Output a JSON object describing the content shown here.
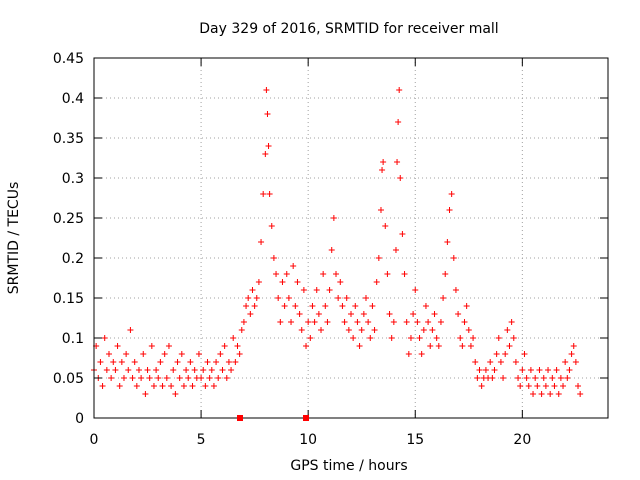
{
  "colors": {
    "background": "#ffffff",
    "axis": "#000000",
    "grid": "#a0a0a0",
    "series": "#ff0000"
  },
  "chart_data": {
    "type": "scatter",
    "title": "Day 329 of 2016, SRMTID for receiver mall",
    "xlabel": "GPS time / hours",
    "ylabel": "SRMTID / TECUs",
    "xlim": [
      0,
      24
    ],
    "ylim": [
      0,
      0.45
    ],
    "grid": true,
    "x_ticks": [
      0,
      5,
      10,
      15,
      20
    ],
    "x_tick_labels": [
      "0",
      "5",
      "10",
      "15",
      "20"
    ],
    "y_ticks": [
      0,
      0.05,
      0.1,
      0.15,
      0.2,
      0.25,
      0.3,
      0.35,
      0.4,
      0.45
    ],
    "y_tick_labels": [
      "0",
      "0.05",
      "0.1",
      "0.15",
      "0.2",
      "0.25",
      "0.3",
      "0.35",
      "0.4",
      "0.45"
    ],
    "marker": "plus",
    "series": [
      {
        "name": "SRMTID",
        "points": [
          [
            0.0,
            0.06
          ],
          [
            0.1,
            0.09
          ],
          [
            0.2,
            0.05
          ],
          [
            0.3,
            0.07
          ],
          [
            0.4,
            0.04
          ],
          [
            0.5,
            0.1
          ],
          [
            0.6,
            0.06
          ],
          [
            0.7,
            0.08
          ],
          [
            0.8,
            0.05
          ],
          [
            0.9,
            0.07
          ],
          [
            1.0,
            0.06
          ],
          [
            1.1,
            0.09
          ],
          [
            1.2,
            0.04
          ],
          [
            1.3,
            0.07
          ],
          [
            1.4,
            0.05
          ],
          [
            1.5,
            0.08
          ],
          [
            1.6,
            0.06
          ],
          [
            1.7,
            0.11
          ],
          [
            1.8,
            0.05
          ],
          [
            1.9,
            0.07
          ],
          [
            2.0,
            0.04
          ],
          [
            2.1,
            0.06
          ],
          [
            2.2,
            0.05
          ],
          [
            2.3,
            0.08
          ],
          [
            2.4,
            0.03
          ],
          [
            2.5,
            0.06
          ],
          [
            2.6,
            0.05
          ],
          [
            2.7,
            0.09
          ],
          [
            2.8,
            0.04
          ],
          [
            2.9,
            0.06
          ],
          [
            3.0,
            0.05
          ],
          [
            3.1,
            0.07
          ],
          [
            3.2,
            0.04
          ],
          [
            3.3,
            0.08
          ],
          [
            3.4,
            0.05
          ],
          [
            3.5,
            0.09
          ],
          [
            3.6,
            0.04
          ],
          [
            3.7,
            0.06
          ],
          [
            3.8,
            0.03
          ],
          [
            3.9,
            0.07
          ],
          [
            4.0,
            0.05
          ],
          [
            4.1,
            0.08
          ],
          [
            4.2,
            0.04
          ],
          [
            4.3,
            0.06
          ],
          [
            4.4,
            0.05
          ],
          [
            4.5,
            0.07
          ],
          [
            4.6,
            0.04
          ],
          [
            4.7,
            0.06
          ],
          [
            4.8,
            0.05
          ],
          [
            4.9,
            0.08
          ],
          [
            5.0,
            0.05
          ],
          [
            5.1,
            0.06
          ],
          [
            5.2,
            0.04
          ],
          [
            5.3,
            0.07
          ],
          [
            5.4,
            0.05
          ],
          [
            5.5,
            0.06
          ],
          [
            5.6,
            0.04
          ],
          [
            5.7,
            0.07
          ],
          [
            5.8,
            0.05
          ],
          [
            5.9,
            0.08
          ],
          [
            6.0,
            0.06
          ],
          [
            6.1,
            0.09
          ],
          [
            6.2,
            0.05
          ],
          [
            6.3,
            0.07
          ],
          [
            6.4,
            0.06
          ],
          [
            6.5,
            0.1
          ],
          [
            6.6,
            0.07
          ],
          [
            6.7,
            0.09
          ],
          [
            6.8,
            0.08
          ],
          [
            6.9,
            0.11
          ],
          [
            7.0,
            0.12
          ],
          [
            7.1,
            0.14
          ],
          [
            7.2,
            0.15
          ],
          [
            7.3,
            0.13
          ],
          [
            7.4,
            0.16
          ],
          [
            7.5,
            0.14
          ],
          [
            7.6,
            0.15
          ],
          [
            7.7,
            0.17
          ],
          [
            7.8,
            0.22
          ],
          [
            7.9,
            0.28
          ],
          [
            8.0,
            0.33
          ],
          [
            8.05,
            0.41
          ],
          [
            8.1,
            0.38
          ],
          [
            8.15,
            0.34
          ],
          [
            8.2,
            0.28
          ],
          [
            8.3,
            0.24
          ],
          [
            8.4,
            0.2
          ],
          [
            8.5,
            0.18
          ],
          [
            8.6,
            0.15
          ],
          [
            8.7,
            0.12
          ],
          [
            8.8,
            0.17
          ],
          [
            8.9,
            0.14
          ],
          [
            9.0,
            0.18
          ],
          [
            9.1,
            0.15
          ],
          [
            9.2,
            0.12
          ],
          [
            9.3,
            0.19
          ],
          [
            9.4,
            0.14
          ],
          [
            9.5,
            0.17
          ],
          [
            9.6,
            0.13
          ],
          [
            9.7,
            0.11
          ],
          [
            9.8,
            0.16
          ],
          [
            9.9,
            0.09
          ],
          [
            10.0,
            0.12
          ],
          [
            10.1,
            0.1
          ],
          [
            10.2,
            0.14
          ],
          [
            10.3,
            0.12
          ],
          [
            10.4,
            0.16
          ],
          [
            10.5,
            0.13
          ],
          [
            10.6,
            0.11
          ],
          [
            10.7,
            0.18
          ],
          [
            10.8,
            0.14
          ],
          [
            10.9,
            0.12
          ],
          [
            11.0,
            0.16
          ],
          [
            11.1,
            0.21
          ],
          [
            11.2,
            0.25
          ],
          [
            11.3,
            0.18
          ],
          [
            11.4,
            0.15
          ],
          [
            11.5,
            0.17
          ],
          [
            11.6,
            0.14
          ],
          [
            11.7,
            0.12
          ],
          [
            11.8,
            0.15
          ],
          [
            11.9,
            0.11
          ],
          [
            12.0,
            0.13
          ],
          [
            12.1,
            0.1
          ],
          [
            12.2,
            0.14
          ],
          [
            12.3,
            0.12
          ],
          [
            12.4,
            0.09
          ],
          [
            12.5,
            0.11
          ],
          [
            12.6,
            0.13
          ],
          [
            12.7,
            0.15
          ],
          [
            12.8,
            0.12
          ],
          [
            12.9,
            0.1
          ],
          [
            13.0,
            0.14
          ],
          [
            13.1,
            0.11
          ],
          [
            13.2,
            0.17
          ],
          [
            13.3,
            0.2
          ],
          [
            13.4,
            0.26
          ],
          [
            13.45,
            0.31
          ],
          [
            13.5,
            0.32
          ],
          [
            13.6,
            0.24
          ],
          [
            13.7,
            0.18
          ],
          [
            13.8,
            0.13
          ],
          [
            13.9,
            0.1
          ],
          [
            14.0,
            0.12
          ],
          [
            14.1,
            0.21
          ],
          [
            14.15,
            0.32
          ],
          [
            14.2,
            0.37
          ],
          [
            14.25,
            0.41
          ],
          [
            14.3,
            0.3
          ],
          [
            14.4,
            0.23
          ],
          [
            14.5,
            0.18
          ],
          [
            14.6,
            0.12
          ],
          [
            14.7,
            0.08
          ],
          [
            14.8,
            0.1
          ],
          [
            14.9,
            0.13
          ],
          [
            15.0,
            0.16
          ],
          [
            15.1,
            0.12
          ],
          [
            15.2,
            0.1
          ],
          [
            15.3,
            0.08
          ],
          [
            15.4,
            0.11
          ],
          [
            15.5,
            0.14
          ],
          [
            15.6,
            0.12
          ],
          [
            15.7,
            0.09
          ],
          [
            15.8,
            0.11
          ],
          [
            15.9,
            0.13
          ],
          [
            16.0,
            0.1
          ],
          [
            16.1,
            0.09
          ],
          [
            16.2,
            0.12
          ],
          [
            16.3,
            0.15
          ],
          [
            16.4,
            0.18
          ],
          [
            16.5,
            0.22
          ],
          [
            16.6,
            0.26
          ],
          [
            16.7,
            0.28
          ],
          [
            16.8,
            0.2
          ],
          [
            16.9,
            0.16
          ],
          [
            17.0,
            0.13
          ],
          [
            17.1,
            0.1
          ],
          [
            17.2,
            0.09
          ],
          [
            17.3,
            0.12
          ],
          [
            17.4,
            0.14
          ],
          [
            17.5,
            0.11
          ],
          [
            17.6,
            0.09
          ],
          [
            17.7,
            0.1
          ],
          [
            17.8,
            0.07
          ],
          [
            17.9,
            0.05
          ],
          [
            18.0,
            0.06
          ],
          [
            18.1,
            0.04
          ],
          [
            18.2,
            0.05
          ],
          [
            18.3,
            0.06
          ],
          [
            18.4,
            0.05
          ],
          [
            18.5,
            0.07
          ],
          [
            18.6,
            0.05
          ],
          [
            18.7,
            0.06
          ],
          [
            18.8,
            0.08
          ],
          [
            18.9,
            0.1
          ],
          [
            19.0,
            0.07
          ],
          [
            19.1,
            0.05
          ],
          [
            19.2,
            0.08
          ],
          [
            19.3,
            0.11
          ],
          [
            19.4,
            0.09
          ],
          [
            19.5,
            0.12
          ],
          [
            19.6,
            0.1
          ],
          [
            19.7,
            0.07
          ],
          [
            19.8,
            0.05
          ],
          [
            19.9,
            0.04
          ],
          [
            20.0,
            0.06
          ],
          [
            20.1,
            0.08
          ],
          [
            20.2,
            0.05
          ],
          [
            20.3,
            0.04
          ],
          [
            20.4,
            0.06
          ],
          [
            20.5,
            0.03
          ],
          [
            20.6,
            0.05
          ],
          [
            20.7,
            0.04
          ],
          [
            20.8,
            0.06
          ],
          [
            20.9,
            0.03
          ],
          [
            21.0,
            0.05
          ],
          [
            21.1,
            0.04
          ],
          [
            21.2,
            0.06
          ],
          [
            21.3,
            0.03
          ],
          [
            21.4,
            0.05
          ],
          [
            21.5,
            0.04
          ],
          [
            21.6,
            0.06
          ],
          [
            21.7,
            0.03
          ],
          [
            21.8,
            0.05
          ],
          [
            21.9,
            0.04
          ],
          [
            22.0,
            0.07
          ],
          [
            22.1,
            0.05
          ],
          [
            22.2,
            0.06
          ],
          [
            22.3,
            0.08
          ],
          [
            22.4,
            0.09
          ],
          [
            22.5,
            0.07
          ],
          [
            22.6,
            0.04
          ],
          [
            22.7,
            0.03
          ]
        ]
      }
    ]
  }
}
